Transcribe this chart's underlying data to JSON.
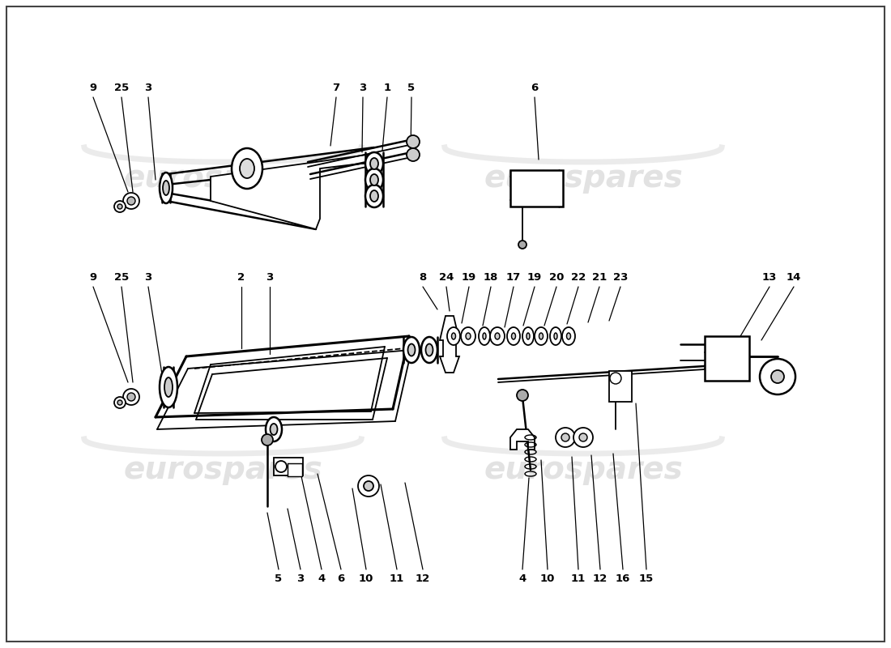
{
  "bg_color": "#ffffff",
  "line_color": "#000000",
  "watermark_color": "#cccccc",
  "fig_width": 11.0,
  "fig_height": 8.0,
  "dpi": 100,
  "upper_labels": [
    [
      "9",
      110,
      130
    ],
    [
      "25",
      148,
      130
    ],
    [
      "3",
      182,
      130
    ],
    [
      "7",
      415,
      130
    ],
    [
      "3",
      450,
      130
    ],
    [
      "1",
      478,
      130
    ],
    [
      "5",
      507,
      130
    ],
    [
      "6",
      660,
      130
    ]
  ],
  "lower_labels": [
    [
      "9",
      110,
      358
    ],
    [
      "25",
      148,
      358
    ],
    [
      "3",
      182,
      358
    ],
    [
      "2",
      298,
      358
    ],
    [
      "3",
      332,
      358
    ],
    [
      "8",
      520,
      358
    ],
    [
      "24",
      550,
      358
    ],
    [
      "19",
      578,
      358
    ],
    [
      "18",
      606,
      358
    ],
    [
      "17",
      634,
      358
    ],
    [
      "19",
      660,
      358
    ],
    [
      "20",
      687,
      358
    ],
    [
      "22",
      714,
      358
    ],
    [
      "21",
      740,
      358
    ],
    [
      "23",
      766,
      358
    ],
    [
      "13",
      950,
      358
    ],
    [
      "14",
      980,
      358
    ]
  ],
  "bottom_labels": [
    [
      "5",
      344,
      700
    ],
    [
      "3",
      371,
      700
    ],
    [
      "4",
      395,
      700
    ],
    [
      "6",
      418,
      700
    ],
    [
      "10",
      450,
      700
    ],
    [
      "11",
      490,
      700
    ],
    [
      "12",
      521,
      700
    ],
    [
      "4",
      645,
      700
    ],
    [
      "10",
      676,
      700
    ],
    [
      "11",
      714,
      700
    ],
    [
      "12",
      740,
      700
    ],
    [
      "16",
      768,
      700
    ],
    [
      "15",
      797,
      700
    ]
  ]
}
